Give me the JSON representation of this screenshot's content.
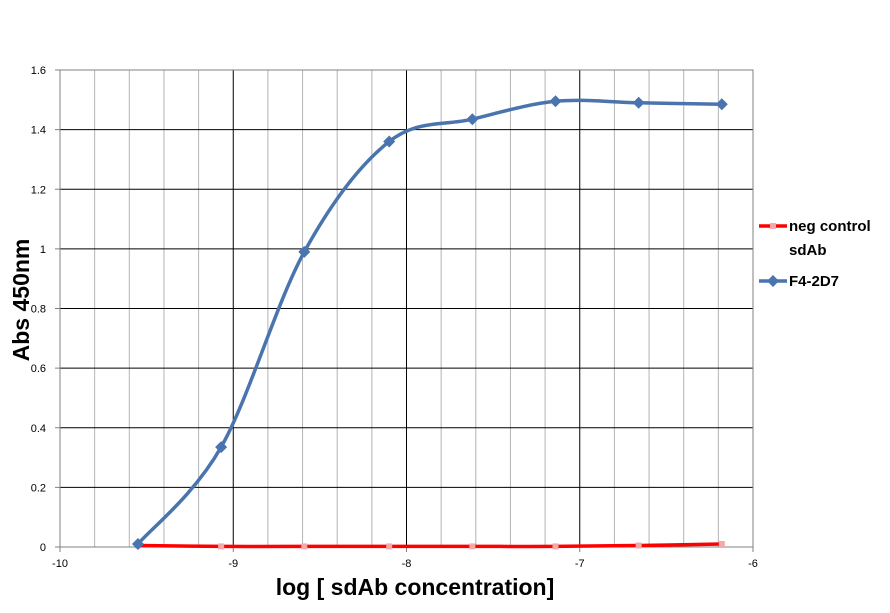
{
  "chart_data": {
    "type": "line",
    "xlabel": "log [ sdAb concentration]",
    "ylabel": "Abs 450nm",
    "xlim": [
      -10,
      -6
    ],
    "ylim": [
      0,
      1.6
    ],
    "x_ticks": [
      -10,
      -9,
      -8,
      -7,
      -6
    ],
    "x_tick_labels": [
      "-10",
      "-9",
      "-8",
      "-7",
      "-6"
    ],
    "y_ticks": [
      0,
      0.2,
      0.4,
      0.6,
      0.8,
      1.0,
      1.2,
      1.4,
      1.6
    ],
    "y_tick_labels": [
      "0",
      "0.2",
      "0.4",
      "0.6",
      "0.8",
      "1",
      "1.2",
      "1.4",
      "1.6"
    ],
    "x_minor_step": 0.2,
    "grid": true,
    "legend_position": "right",
    "series": [
      {
        "name": "neg control sdAb",
        "legend_lines": [
          "neg control",
          "sdAb"
        ],
        "color": "#ff0000",
        "marker": "square",
        "marker_color": "#f2a9a9",
        "x": [
          -9.55,
          -9.07,
          -8.59,
          -8.1,
          -7.62,
          -7.14,
          -6.66,
          -6.18
        ],
        "y": [
          0.005,
          0.002,
          0.002,
          0.002,
          0.002,
          0.002,
          0.005,
          0.01
        ]
      },
      {
        "name": "F4-2D7",
        "legend_lines": [
          "F4-2D7"
        ],
        "color": "#4a74ad",
        "marker": "diamond",
        "marker_color": "#4a74ad",
        "x": [
          -9.55,
          -9.07,
          -8.59,
          -8.1,
          -7.62,
          -7.14,
          -6.66,
          -6.18
        ],
        "y": [
          0.01,
          0.335,
          0.99,
          1.36,
          1.435,
          1.495,
          1.49,
          1.485
        ]
      }
    ]
  }
}
